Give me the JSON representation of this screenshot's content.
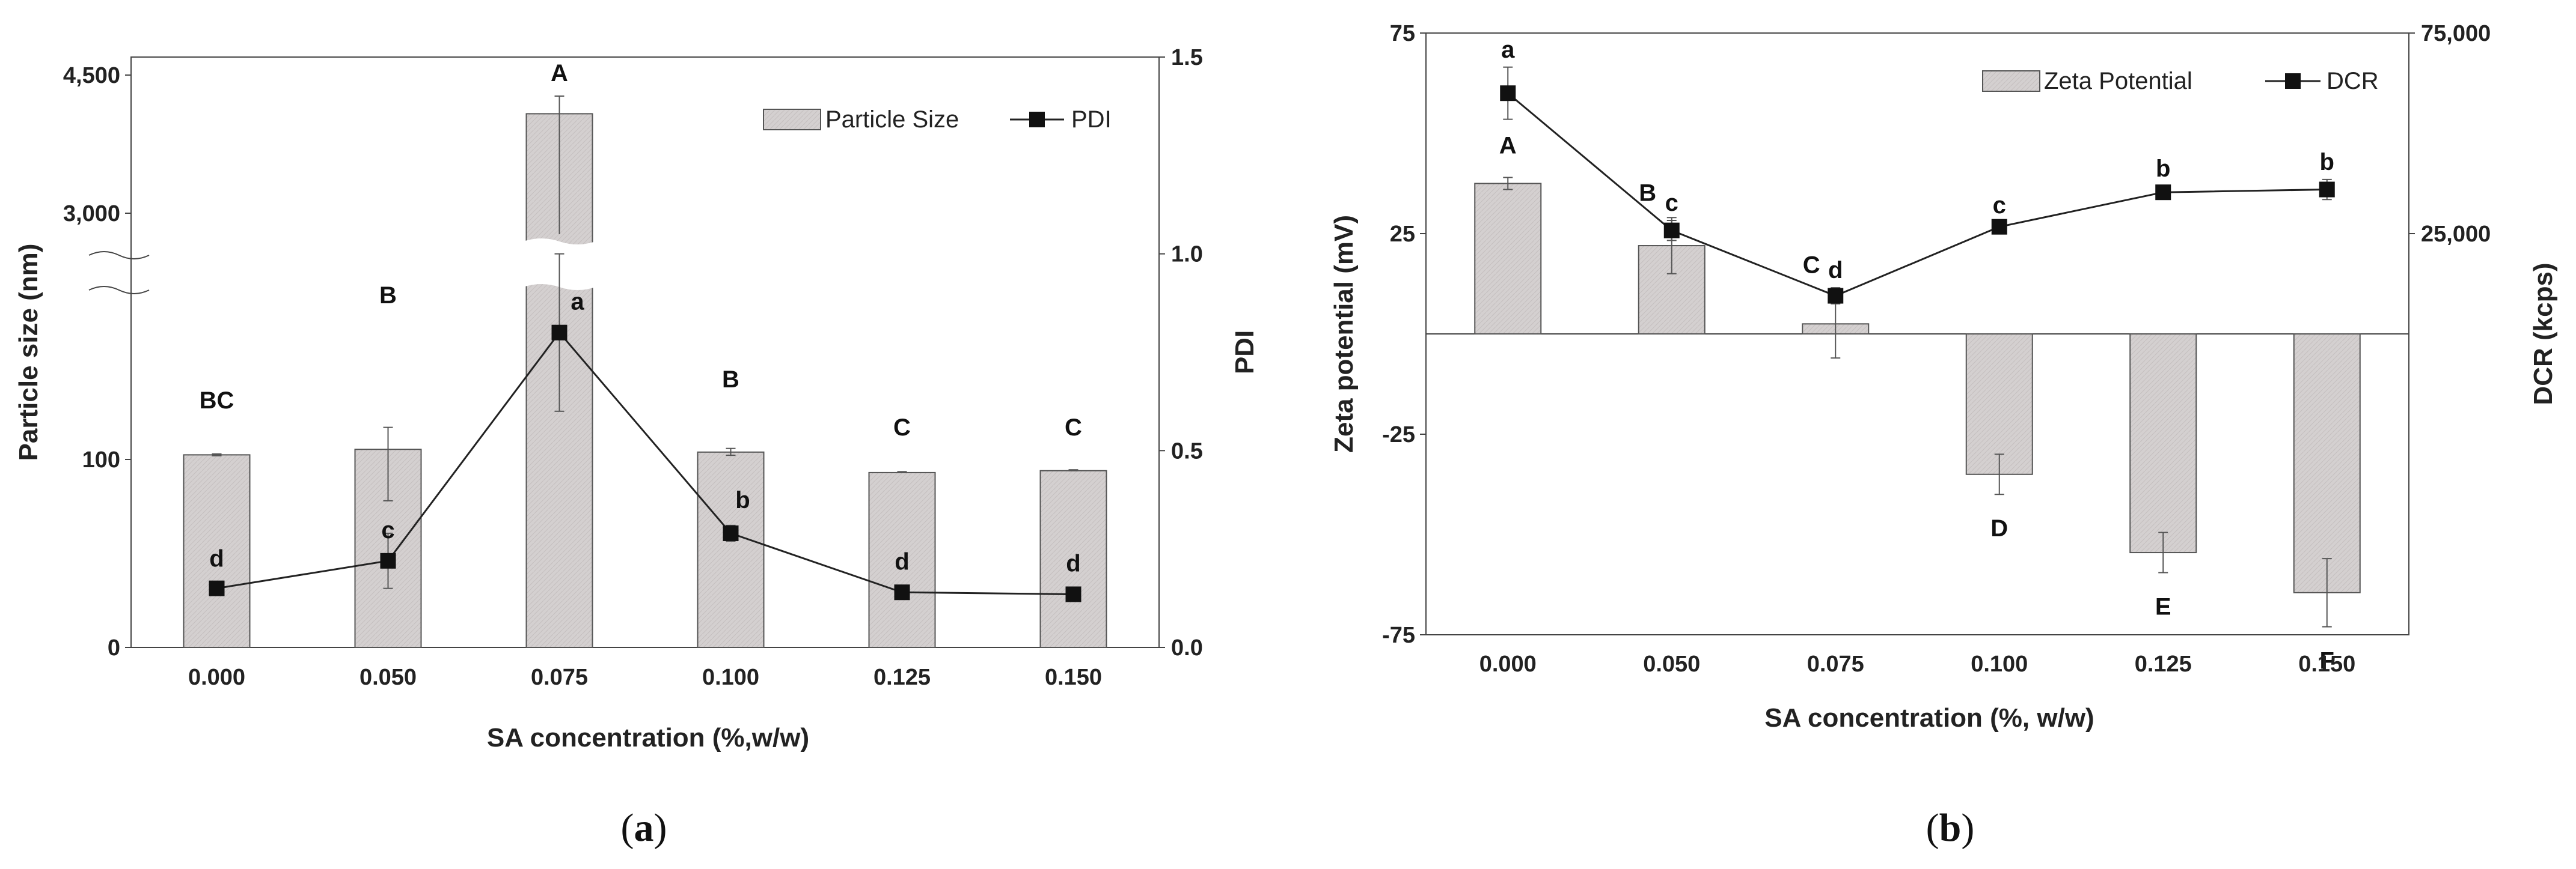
{
  "chart_data": [
    {
      "panel": "a",
      "type": "bar+line",
      "caption": {
        "open": "(",
        "letter": "a",
        "close": ")"
      },
      "xlabel": "SA concentration (%,w/w)",
      "ylabel": "Particle size (nm)",
      "y2label": "PDI",
      "categories": [
        "0.000",
        "0.050",
        "0.075",
        "0.100",
        "0.125",
        "0.150"
      ],
      "y_ticks": [
        "0",
        "100",
        "3,000",
        "4,500"
      ],
      "y_axis_break": true,
      "y2lim": [
        0,
        1.5
      ],
      "y2_ticks": [
        "0.0",
        "0.5",
        "1.0",
        "1.5"
      ],
      "legend": [
        "Particle Size",
        "PDI"
      ],
      "series": [
        {
          "name": "Particle Size",
          "kind": "bar",
          "values": [
            110,
            122,
            4080,
            116,
            93,
            94
          ],
          "letters": [
            "BC",
            "B",
            "A",
            "B",
            "C",
            "C"
          ]
        },
        {
          "name": "PDI",
          "kind": "line",
          "values": [
            0.15,
            0.22,
            0.8,
            0.29,
            0.14,
            0.135
          ],
          "errors": [
            0.01,
            0.07,
            0.2,
            0.02,
            0.005,
            0.005
          ],
          "letters": [
            "d",
            "c",
            "a",
            "b",
            "d",
            "d"
          ]
        }
      ]
    },
    {
      "panel": "b",
      "type": "bar+line",
      "caption": {
        "open": "(",
        "letter": "b",
        "close": ")"
      },
      "xlabel": "SA concentration (%, w/w)",
      "ylabel": "Zeta potential (mV)",
      "y2label": "DCR (kcps)",
      "categories": [
        "0.000",
        "0.050",
        "0.075",
        "0.100",
        "0.125",
        "0.150"
      ],
      "ylim": [
        -75,
        75
      ],
      "y_ticks": [
        "-75",
        "-25",
        "25",
        "75"
      ],
      "y2lim": [
        -75000,
        75000
      ],
      "y2_ticks": [
        "25,000",
        "75,000"
      ],
      "legend": [
        "Zeta Potential",
        "DCR"
      ],
      "series": [
        {
          "name": "Zeta Potential",
          "kind": "bar",
          "values": [
            37.5,
            22,
            2.5,
            -35,
            -54.5,
            -64.5
          ],
          "errors": [
            1.5,
            7,
            8.5,
            5,
            5,
            8.5
          ],
          "letters": [
            "A",
            "B",
            "C",
            "D",
            "E",
            "F"
          ]
        },
        {
          "name": "DCR",
          "kind": "line",
          "values": [
            60000,
            25800,
            9500,
            26700,
            35300,
            36000
          ],
          "errors": [
            6500,
            2500,
            2000,
            1000,
            1500,
            2500
          ],
          "letters": [
            "a",
            "c",
            "d",
            "c",
            "b",
            "b"
          ]
        }
      ]
    }
  ]
}
